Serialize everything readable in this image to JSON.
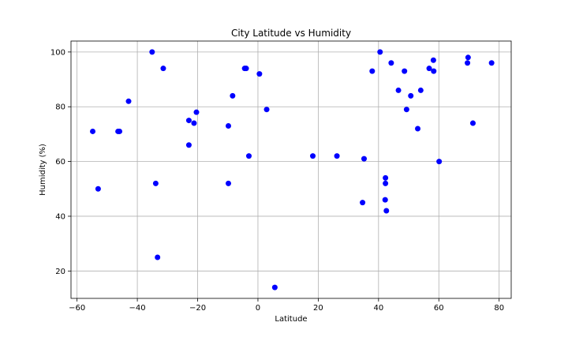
{
  "chart_data": {
    "type": "scatter",
    "title": "City Latitude vs Humidity",
    "xlabel": "Latitude",
    "ylabel": "Humidity (%)",
    "xlim": [
      -62,
      84
    ],
    "ylim": [
      10,
      104
    ],
    "xticks": [
      -60,
      -40,
      -20,
      0,
      20,
      40,
      60,
      80
    ],
    "yticks": [
      20,
      40,
      60,
      80,
      100
    ],
    "grid": true,
    "marker_color": "#0000ff",
    "points": [
      {
        "x": -54.8,
        "y": 71
      },
      {
        "x": -53.0,
        "y": 50
      },
      {
        "x": -46.4,
        "y": 71
      },
      {
        "x": -45.9,
        "y": 71
      },
      {
        "x": -42.9,
        "y": 82
      },
      {
        "x": -35.1,
        "y": 100
      },
      {
        "x": -33.9,
        "y": 52
      },
      {
        "x": -33.3,
        "y": 25
      },
      {
        "x": -31.4,
        "y": 94
      },
      {
        "x": -22.9,
        "y": 75
      },
      {
        "x": -22.9,
        "y": 66
      },
      {
        "x": -21.2,
        "y": 74
      },
      {
        "x": -20.4,
        "y": 78
      },
      {
        "x": -9.8,
        "y": 73
      },
      {
        "x": -9.8,
        "y": 52
      },
      {
        "x": -8.4,
        "y": 84
      },
      {
        "x": -4.4,
        "y": 94
      },
      {
        "x": -3.9,
        "y": 94
      },
      {
        "x": -3.0,
        "y": 62
      },
      {
        "x": 0.5,
        "y": 92
      },
      {
        "x": 2.9,
        "y": 79
      },
      {
        "x": 5.6,
        "y": 14
      },
      {
        "x": 18.2,
        "y": 62
      },
      {
        "x": 26.2,
        "y": 62
      },
      {
        "x": 34.7,
        "y": 45
      },
      {
        "x": 35.2,
        "y": 61
      },
      {
        "x": 37.9,
        "y": 93
      },
      {
        "x": 40.5,
        "y": 100
      },
      {
        "x": 42.3,
        "y": 54
      },
      {
        "x": 42.3,
        "y": 52
      },
      {
        "x": 42.2,
        "y": 46
      },
      {
        "x": 42.6,
        "y": 42
      },
      {
        "x": 44.2,
        "y": 96
      },
      {
        "x": 46.6,
        "y": 86
      },
      {
        "x": 48.6,
        "y": 93
      },
      {
        "x": 49.3,
        "y": 79
      },
      {
        "x": 50.7,
        "y": 84
      },
      {
        "x": 53.0,
        "y": 72
      },
      {
        "x": 54.0,
        "y": 86
      },
      {
        "x": 56.8,
        "y": 94
      },
      {
        "x": 58.2,
        "y": 97
      },
      {
        "x": 58.3,
        "y": 93
      },
      {
        "x": 60.1,
        "y": 60
      },
      {
        "x": 69.5,
        "y": 96
      },
      {
        "x": 69.7,
        "y": 98
      },
      {
        "x": 71.3,
        "y": 74
      },
      {
        "x": 77.5,
        "y": 96
      }
    ]
  }
}
